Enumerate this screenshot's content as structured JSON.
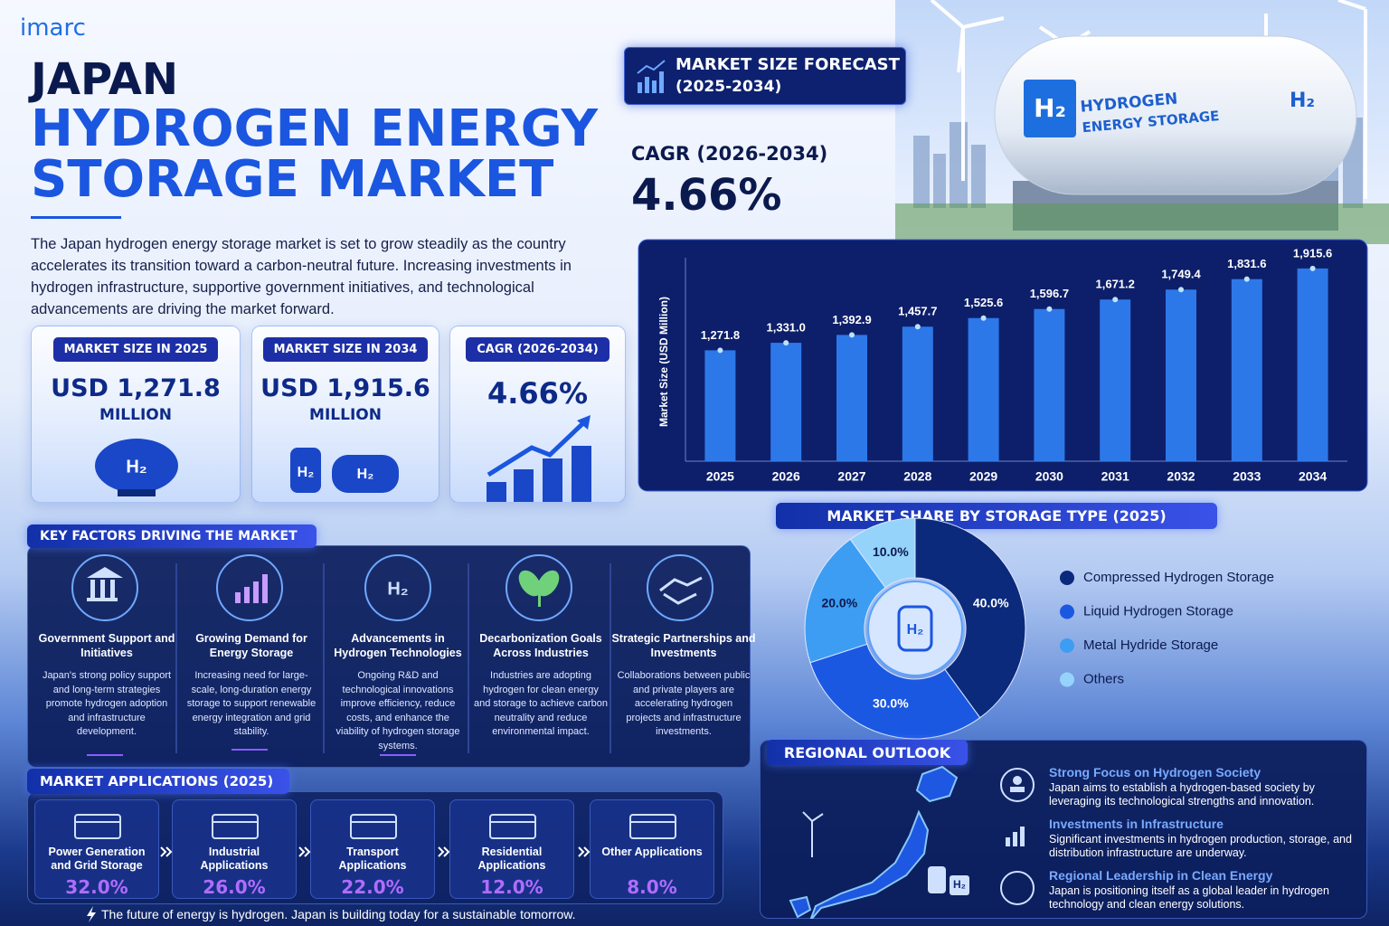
{
  "brand": "imarc",
  "title": {
    "line1": "JAPAN",
    "line2": "HYDROGEN ENERGY",
    "line3": "STORAGE MARKET"
  },
  "intro": "The Japan hydrogen energy storage market is set to grow steadily as the country accelerates its transition toward a carbon-neutral future. Increasing investments in hydrogen infrastructure, supportive government initiatives, and technological advancements are driving the market forward.",
  "symbol": "H₂",
  "hero": {
    "tank_label_1": "HYDROGEN",
    "tank_label_2": "ENERGY STORAGE"
  },
  "cagr_headline": {
    "label": "CAGR (2026-2034)",
    "value": "4.66%"
  },
  "stat_cards": [
    {
      "label": "MARKET SIZE IN 2025",
      "value": "USD 1,271.8",
      "unit": "MILLION"
    },
    {
      "label": "MARKET SIZE IN 2034",
      "value": "USD 1,915.6",
      "unit": "MILLION"
    },
    {
      "label": "CAGR (2026-2034)",
      "value": "4.66%"
    }
  ],
  "key_factors": {
    "title": "KEY FACTORS DRIVING THE MARKET",
    "items": [
      {
        "title": "Government Support and Initiatives",
        "text": "Japan's strong policy support and long-term strategies promote hydrogen adoption and infrastructure development."
      },
      {
        "title": "Growing Demand for Energy Storage",
        "text": "Increasing need for large-scale, long-duration energy storage to support renewable energy integration and grid stability."
      },
      {
        "title": "Advancements in Hydrogen Technologies",
        "text": "Ongoing R&D and technological innovations improve efficiency, reduce costs, and enhance the viability of hydrogen storage systems."
      },
      {
        "title": "Decarbonization Goals Across Industries",
        "text": "Industries are adopting hydrogen for clean energy and storage to achieve carbon neutrality and reduce environmental impact."
      },
      {
        "title": "Strategic Partnerships and Investments",
        "text": "Collaborations between public and private players are accelerating hydrogen projects and infrastructure investments."
      }
    ]
  },
  "applications": {
    "title": "MARKET APPLICATIONS (2025)",
    "items": [
      {
        "name": "Power Generation and Grid Storage",
        "share": "32.0%"
      },
      {
        "name": "Industrial Applications",
        "share": "26.0%"
      },
      {
        "name": "Transport Applications",
        "share": "22.0%"
      },
      {
        "name": "Residential Applications",
        "share": "12.0%"
      },
      {
        "name": "Other Applications",
        "share": "8.0%"
      }
    ]
  },
  "footer": "The future of energy is hydrogen. Japan is building today for a sustainable tomorrow.",
  "regional": {
    "title": "REGIONAL OUTLOOK",
    "items": [
      {
        "title": "Strong Focus on Hydrogen Society",
        "text": "Japan aims to establish a hydrogen-based society by leveraging its technological strengths and innovation."
      },
      {
        "title": "Investments in Infrastructure",
        "text": "Significant investments in hydrogen production, storage, and distribution infrastructure are underway."
      },
      {
        "title": "Regional Leadership in Clean Energy",
        "text": "Japan is positioning itself as a global leader in hydrogen technology and clean energy solutions."
      }
    ]
  },
  "chart_data": [
    {
      "type": "bar",
      "title": "MARKET SIZE FORECAST",
      "subtitle": "(2025-2034)",
      "y_label": "Market Size (USD Million)",
      "categories": [
        "2025",
        "2026",
        "2027",
        "2028",
        "2029",
        "2030",
        "2031",
        "2032",
        "2033",
        "2034"
      ],
      "values": [
        1271.8,
        1331.0,
        1392.9,
        1457.7,
        1525.6,
        1596.7,
        1671.2,
        1749.4,
        1831.6,
        1915.6
      ],
      "value_labels": [
        "1,271.8",
        "1,331.0",
        "1,392.9",
        "1,457.7",
        "1,525.6",
        "1,596.7",
        "1,671.2",
        "1,749.4",
        "1,831.6",
        "1,915.6"
      ],
      "color": "#2f7df0",
      "ylim": [
        400,
        2000
      ]
    },
    {
      "type": "pie",
      "title": "MARKET SHARE BY STORAGE TYPE (2025)",
      "categories": [
        "Compressed Hydrogen Storage",
        "Liquid Hydrogen Storage",
        "Metal Hydride Storage",
        "Others"
      ],
      "values": [
        40,
        30,
        20,
        10
      ],
      "value_labels": [
        "40.0%",
        "30.0%",
        "20.0%",
        "10.0%"
      ],
      "colors": [
        "#0c2a7c",
        "#1a58e2",
        "#3d9df2",
        "#95d3fa"
      ]
    }
  ]
}
